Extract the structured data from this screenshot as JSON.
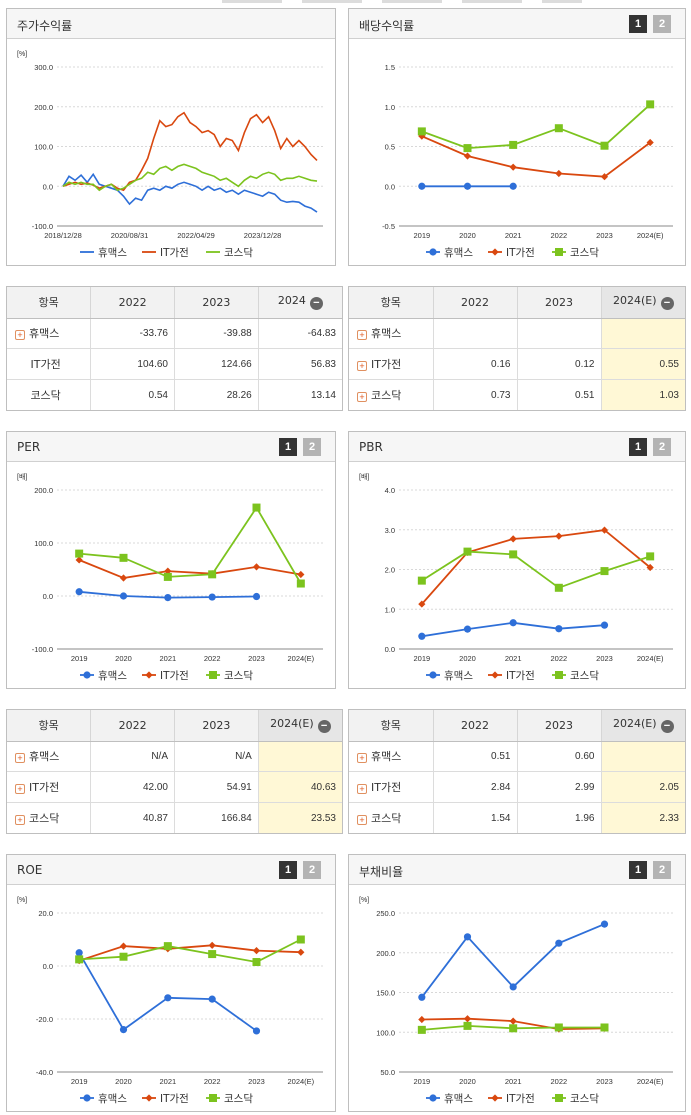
{
  "charts": [
    {
      "title": "주가수익률",
      "unit": "[%]",
      "paging": null,
      "chart_data": {
        "type": "line",
        "ylim": [
          -100,
          300
        ],
        "yticks": [
          "300.0",
          "200.0",
          "100.0",
          "0.0",
          "-100.0"
        ],
        "xticks": [
          "2018/12/28",
          "2020/08/31",
          "2022/04/29",
          "2023/12/28"
        ],
        "series": [
          {
            "name": "휴맥스",
            "color": "#2e6fd8",
            "marker": "circle",
            "values": [
              0,
              25,
              15,
              28,
              10,
              30,
              5,
              0,
              -5,
              -10,
              -25,
              -45,
              -30,
              -35,
              -10,
              -5,
              -10,
              0,
              -5,
              5,
              10,
              5,
              0,
              -10,
              0,
              -10,
              -5,
              -15,
              -10,
              -20,
              -10,
              -15,
              -20,
              -25,
              -15,
              -20,
              -35,
              -40,
              -38,
              -40,
              -50,
              -55,
              -65
            ]
          },
          {
            "name": "IT가전",
            "color": "#d9480f",
            "marker": "diamond",
            "values": [
              0,
              5,
              10,
              5,
              8,
              3,
              -5,
              0,
              5,
              -5,
              -10,
              10,
              15,
              40,
              70,
              120,
              165,
              150,
              155,
              175,
              185,
              160,
              150,
              135,
              140,
              130,
              100,
              120,
              115,
              90,
              135,
              170,
              180,
              160,
              175,
              140,
              95,
              120,
              100,
              115,
              100,
              80,
              65
            ]
          },
          {
            "name": "코스닥",
            "color": "#7cc31e",
            "marker": "square",
            "values": [
              0,
              10,
              5,
              10,
              5,
              5,
              -10,
              0,
              5,
              -10,
              -5,
              5,
              15,
              20,
              35,
              30,
              45,
              50,
              40,
              50,
              55,
              50,
              45,
              35,
              30,
              25,
              15,
              20,
              10,
              0,
              15,
              25,
              20,
              30,
              35,
              30,
              15,
              20,
              20,
              25,
              20,
              15,
              13
            ]
          }
        ]
      }
    },
    {
      "title": "배당수익률",
      "unit": "",
      "paging": [
        "1",
        "2"
      ],
      "chart_data": {
        "type": "line",
        "ylim": [
          -0.5,
          1.5
        ],
        "yticks": [
          "1.5",
          "1.0",
          "0.5",
          "0.0",
          "-0.5"
        ],
        "categories": [
          "2019",
          "2020",
          "2021",
          "2022",
          "2023",
          "2024(E)"
        ],
        "series": [
          {
            "name": "휴맥스",
            "color": "#2e6fd8",
            "marker": "circle",
            "values": [
              0,
              0,
              0,
              null,
              null,
              null
            ]
          },
          {
            "name": "IT가전",
            "color": "#d9480f",
            "marker": "diamond",
            "values": [
              0.63,
              0.38,
              0.24,
              0.16,
              0.12,
              0.55
            ]
          },
          {
            "name": "코스닥",
            "color": "#7cc31e",
            "marker": "square",
            "values": [
              0.69,
              0.48,
              0.52,
              0.73,
              0.51,
              1.03
            ]
          }
        ]
      }
    },
    {
      "title": "PER",
      "unit": "[배]",
      "paging": [
        "1",
        "2"
      ],
      "chart_data": {
        "type": "line",
        "ylim": [
          -100,
          200
        ],
        "yticks": [
          "200.0",
          "100.0",
          "0.0",
          "-100.0"
        ],
        "categories": [
          "2019",
          "2020",
          "2021",
          "2022",
          "2023",
          "2024(E)"
        ],
        "series": [
          {
            "name": "휴맥스",
            "color": "#2e6fd8",
            "marker": "circle",
            "values": [
              8,
              0,
              -3,
              -2,
              -1,
              null
            ]
          },
          {
            "name": "IT가전",
            "color": "#d9480f",
            "marker": "diamond",
            "values": [
              68,
              34,
              47,
              42,
              54.91,
              40.63
            ]
          },
          {
            "name": "코스닥",
            "color": "#7cc31e",
            "marker": "square",
            "values": [
              80,
              72,
              36,
              40.87,
              166.84,
              23.53
            ]
          }
        ]
      }
    },
    {
      "title": "PBR",
      "unit": "[배]",
      "paging": [
        "1",
        "2"
      ],
      "chart_data": {
        "type": "line",
        "ylim": [
          0,
          4
        ],
        "yticks": [
          "4.0",
          "3.0",
          "2.0",
          "1.0",
          "0.0"
        ],
        "categories": [
          "2019",
          "2020",
          "2021",
          "2022",
          "2023",
          "2024(E)"
        ],
        "series": [
          {
            "name": "휴맥스",
            "color": "#2e6fd8",
            "marker": "circle",
            "values": [
              0.32,
              0.5,
              0.66,
              0.51,
              0.6,
              null
            ]
          },
          {
            "name": "IT가전",
            "color": "#d9480f",
            "marker": "diamond",
            "values": [
              1.13,
              2.43,
              2.77,
              2.84,
              2.99,
              2.05
            ]
          },
          {
            "name": "코스닥",
            "color": "#7cc31e",
            "marker": "square",
            "values": [
              1.72,
              2.45,
              2.38,
              1.54,
              1.96,
              2.33
            ]
          }
        ]
      }
    },
    {
      "title": "ROE",
      "unit": "[%]",
      "paging": [
        "1",
        "2"
      ],
      "chart_data": {
        "type": "line",
        "ylim": [
          -40,
          20
        ],
        "yticks": [
          "20.0",
          "0.0",
          "-20.0",
          "-40.0"
        ],
        "categories": [
          "2019",
          "2020",
          "2021",
          "2022",
          "2023",
          "2024(E)"
        ],
        "series": [
          {
            "name": "휴맥스",
            "color": "#2e6fd8",
            "marker": "circle",
            "values": [
              5,
              -24,
              -12,
              -12.5,
              -24.5,
              null
            ]
          },
          {
            "name": "IT가전",
            "color": "#d9480f",
            "marker": "diamond",
            "values": [
              2,
              7.5,
              6.5,
              7.8,
              5.8,
              5.2
            ]
          },
          {
            "name": "코스닥",
            "color": "#7cc31e",
            "marker": "square",
            "values": [
              2.5,
              3.5,
              7.5,
              4.5,
              1.5,
              10
            ]
          }
        ]
      }
    },
    {
      "title": "부채비율",
      "unit": "[%]",
      "paging": [
        "1",
        "2"
      ],
      "chart_data": {
        "type": "line",
        "ylim": [
          50,
          250
        ],
        "yticks": [
          "250.0",
          "200.0",
          "150.0",
          "100.0",
          "50.0"
        ],
        "categories": [
          "2019",
          "2020",
          "2021",
          "2022",
          "2023",
          "2024(E)"
        ],
        "series": [
          {
            "name": "휴맥스",
            "color": "#2e6fd8",
            "marker": "circle",
            "values": [
              144,
              220,
              157,
              212,
              236,
              null
            ]
          },
          {
            "name": "IT가전",
            "color": "#d9480f",
            "marker": "diamond",
            "values": [
              116,
              117,
              114,
              104,
              105,
              null
            ]
          },
          {
            "name": "코스닥",
            "color": "#7cc31e",
            "marker": "square",
            "values": [
              103,
              108,
              105,
              106,
              106,
              null
            ]
          }
        ]
      }
    }
  ],
  "tables": [
    {
      "headers": [
        "항목",
        "2022",
        "2023",
        "2024"
      ],
      "header_toggle": "−",
      "highlight_last": false,
      "rows": [
        {
          "label": "휴맥스",
          "expand": "+",
          "cells": [
            "-33.76",
            "-39.88",
            "-64.83"
          ]
        },
        {
          "label": "IT가전",
          "expand": null,
          "cells": [
            "104.60",
            "124.66",
            "56.83"
          ]
        },
        {
          "label": "코스닥",
          "expand": null,
          "cells": [
            "0.54",
            "28.26",
            "13.14"
          ]
        }
      ]
    },
    {
      "headers": [
        "항목",
        "2022",
        "2023",
        "2024(E)"
      ],
      "header_toggle": "−",
      "highlight_last": true,
      "rows": [
        {
          "label": "휴맥스",
          "expand": "+",
          "cells": [
            "",
            "",
            ""
          ]
        },
        {
          "label": "IT가전",
          "expand": "+",
          "cells": [
            "0.16",
            "0.12",
            "0.55"
          ]
        },
        {
          "label": "코스닥",
          "expand": "+",
          "cells": [
            "0.73",
            "0.51",
            "1.03"
          ]
        }
      ]
    },
    {
      "headers": [
        "항목",
        "2022",
        "2023",
        "2024(E)"
      ],
      "header_toggle": "−",
      "highlight_last": true,
      "rows": [
        {
          "label": "휴맥스",
          "expand": "+",
          "cells": [
            "N/A",
            "N/A",
            ""
          ]
        },
        {
          "label": "IT가전",
          "expand": "+",
          "cells": [
            "42.00",
            "54.91",
            "40.63"
          ]
        },
        {
          "label": "코스닥",
          "expand": "+",
          "cells": [
            "40.87",
            "166.84",
            "23.53"
          ]
        }
      ]
    },
    {
      "headers": [
        "항목",
        "2022",
        "2023",
        "2024(E)"
      ],
      "header_toggle": "−",
      "highlight_last": true,
      "rows": [
        {
          "label": "휴맥스",
          "expand": "+",
          "cells": [
            "0.51",
            "0.60",
            ""
          ]
        },
        {
          "label": "IT가전",
          "expand": "+",
          "cells": [
            "2.84",
            "2.99",
            "2.05"
          ]
        },
        {
          "label": "코스닥",
          "expand": "+",
          "cells": [
            "1.54",
            "1.96",
            "2.33"
          ]
        }
      ]
    }
  ]
}
